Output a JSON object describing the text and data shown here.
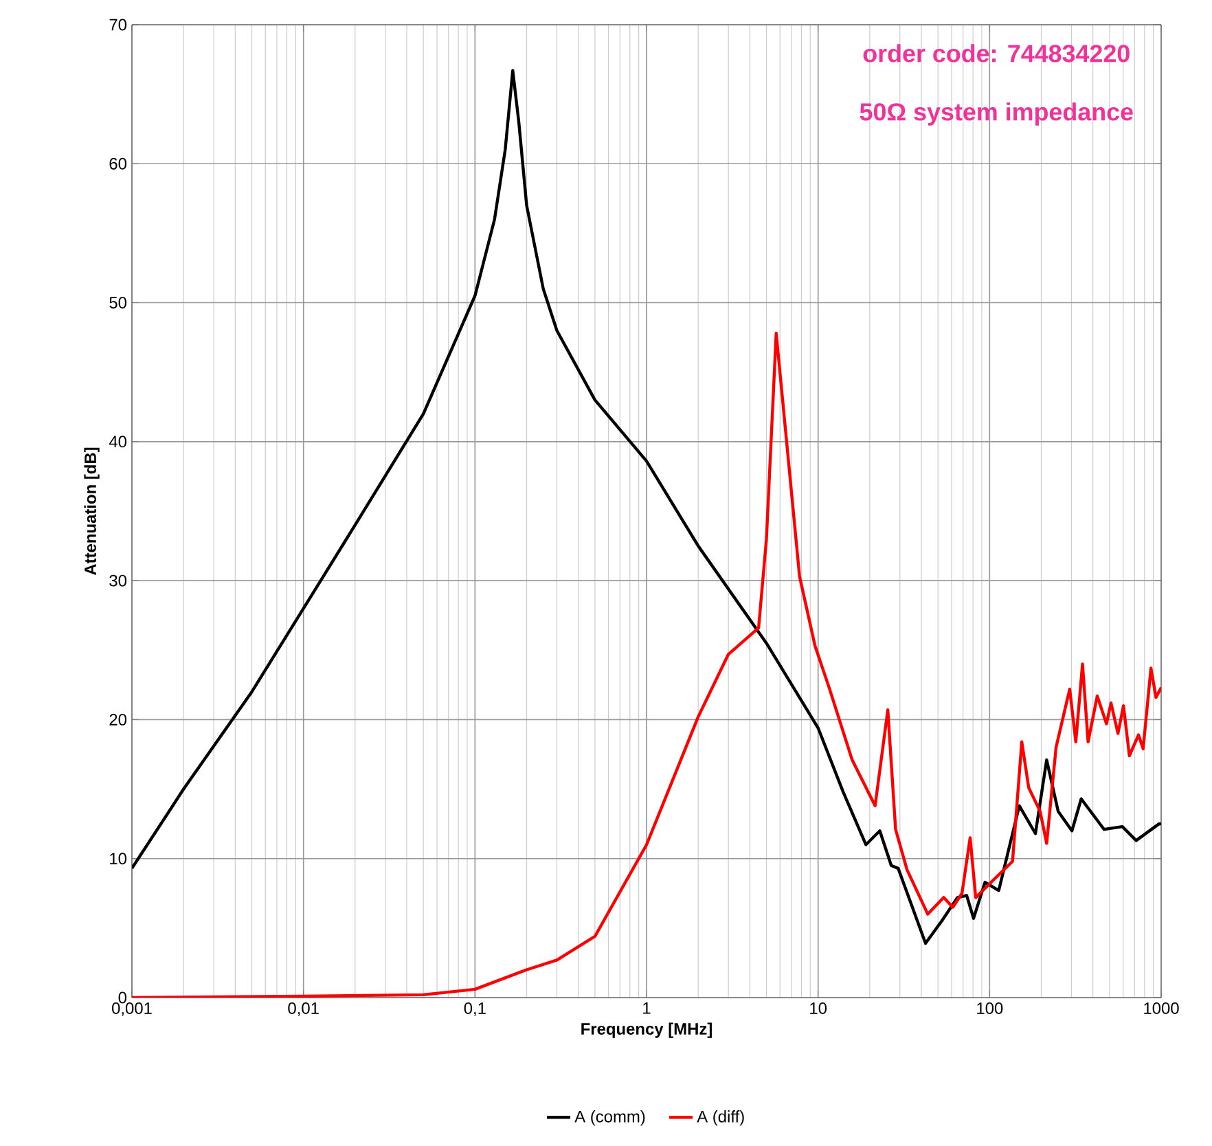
{
  "chart_data": {
    "type": "line",
    "xlabel": "Frequency [MHz]",
    "ylabel": "Attenuation [dB]",
    "log": "x",
    "grid": true,
    "legend": "bottom",
    "line_style": "solid",
    "marker": "none",
    "xlim": [
      0.001,
      1000
    ],
    "ylim": [
      0,
      70
    ],
    "xticks": [
      {
        "value": 0.001,
        "label": "0,001"
      },
      {
        "value": 0.01,
        "label": "0,01"
      },
      {
        "value": 0.1,
        "label": "0,1"
      },
      1,
      10,
      100,
      1000
    ],
    "yticks": [
      0,
      10,
      20,
      30,
      40,
      50,
      60,
      70
    ],
    "annotations": [
      "order code: 744834220",
      "50Ω system impedance"
    ],
    "series": [
      {
        "name": "A (comm)",
        "color": "#000000",
        "x": [
          0.001,
          0.002,
          0.005,
          0.01,
          0.02,
          0.05,
          0.1,
          0.13,
          0.15,
          0.166,
          0.18,
          0.2,
          0.25,
          0.3,
          0.5,
          1,
          2,
          5,
          10,
          14,
          19,
          22.9,
          26.7,
          29.3,
          42.3,
          52.5,
          65,
          73.5,
          80.6,
          94,
          113,
          149,
          185,
          215,
          251,
          302,
          342,
          465,
          594,
          715,
          972,
          1000
        ],
        "values": [
          9.3,
          15,
          22,
          28,
          34,
          42,
          50.5,
          56,
          61,
          66.7,
          63,
          57,
          51,
          48,
          43,
          38.6,
          32.5,
          25.5,
          19.4,
          14.8,
          11.0,
          12.0,
          9.5,
          9.3,
          3.9,
          5.5,
          7.2,
          7.35,
          5.7,
          8.3,
          7.7,
          13.8,
          11.8,
          17.1,
          13.4,
          12.0,
          14.3,
          12.1,
          12.3,
          11.3,
          12.5,
          12.5
        ]
      },
      {
        "name": "A (diff)",
        "color": "#ff0000",
        "x": [
          0.001,
          0.01,
          0.05,
          0.1,
          0.2,
          0.3,
          0.5,
          1,
          2,
          3,
          4.5,
          5,
          5.7,
          7.8,
          9.6,
          11.6,
          15.8,
          21.5,
          25.5,
          28.3,
          33,
          43.6,
          54,
          61,
          69,
          77,
          83,
          106,
          136,
          154,
          169,
          197,
          215,
          244,
          293,
          318,
          348,
          375,
          424,
          480,
          510,
          560,
          603,
          653,
          738,
          785,
          872,
          933,
          1000
        ],
        "values": [
          0,
          0.1,
          0.2,
          0.6,
          2,
          2.7,
          4.4,
          11.0,
          20.2,
          24.7,
          26.6,
          33,
          47.8,
          30.3,
          25.3,
          22.3,
          17.1,
          13.8,
          20.7,
          12.1,
          9.2,
          6.0,
          7.2,
          6.5,
          7.5,
          11.5,
          7.2,
          8.5,
          9.8,
          18.4,
          15.1,
          13.4,
          11.1,
          18.0,
          22.2,
          18.4,
          24.0,
          18.4,
          21.7,
          19.7,
          21.2,
          19.0,
          21.0,
          17.4,
          18.9,
          17.9,
          23.7,
          21.6,
          22.3
        ]
      }
    ]
  }
}
